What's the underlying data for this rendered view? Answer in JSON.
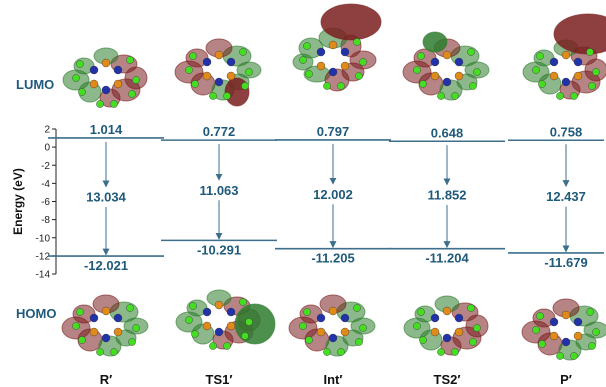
{
  "chart_data": {
    "type": "energy-level-diagram",
    "ylabel": "Energy (eV)",
    "ylim": [
      -14,
      2
    ],
    "yticks": [
      2,
      0,
      -2,
      -4,
      -6,
      -8,
      -10,
      -12,
      -14
    ],
    "row_labels": {
      "lumo": "LUMO",
      "homo": "HOMO"
    },
    "categories": [
      "R′",
      "TS1′",
      "Int′",
      "TS2′",
      "P′"
    ],
    "lumo_values": [
      1.014,
      0.772,
      0.797,
      0.648,
      0.758
    ],
    "homo_values": [
      -12.021,
      -10.291,
      -11.205,
      -11.204,
      -11.679
    ],
    "lumo_labels": [
      "1.014",
      "0.772",
      "0.797",
      "0.648",
      "0.758"
    ],
    "homo_labels": [
      "-12.021",
      "-10.291",
      "-11.205",
      "-11.204",
      "-11.679"
    ],
    "gaps": [
      "13.034",
      "11.063",
      "12.002",
      "11.852",
      "12.437"
    ]
  },
  "colors": {
    "level_line": "#3d6e8c",
    "label": "#1f5a7a",
    "orbital_positive": "#2e7d2e",
    "orbital_negative": "#7a1f1f",
    "atom_carbon": "#e08a1a",
    "atom_nitrogen": "#2233aa",
    "atom_halogen": "#44dd22"
  },
  "molecule_icons": "orbital-isosurface-image"
}
